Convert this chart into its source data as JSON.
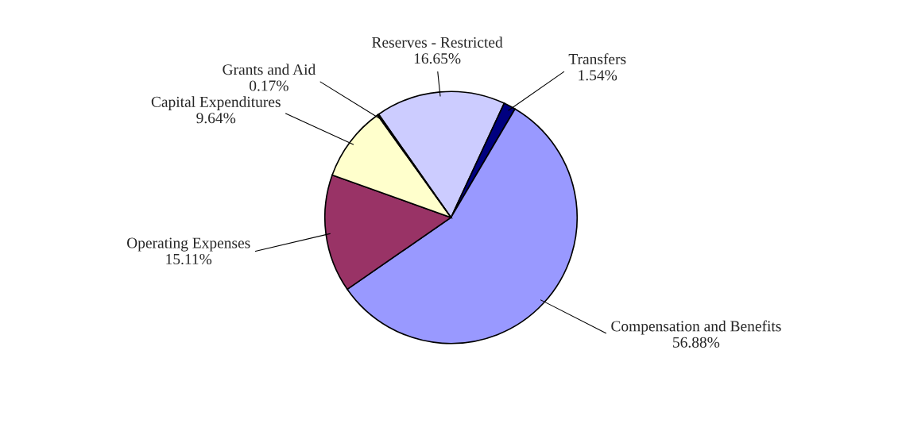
{
  "chart_data": {
    "type": "pie",
    "categories": [
      "Reserves - Restricted",
      "Transfers",
      "Compensation and Benefits",
      "Operating Expenses",
      "Capital Expenditures",
      "Grants and Aid"
    ],
    "values": [
      16.65,
      1.54,
      56.88,
      15.11,
      9.64,
      0.17
    ],
    "value_labels": [
      "16.65%",
      "1.54%",
      "56.88%",
      "15.11%",
      "9.64%",
      "0.17%"
    ],
    "colors": [
      "#ccccff",
      "#000080",
      "#9999ff",
      "#993366",
      "#ffffcc",
      "#ccffff"
    ]
  }
}
